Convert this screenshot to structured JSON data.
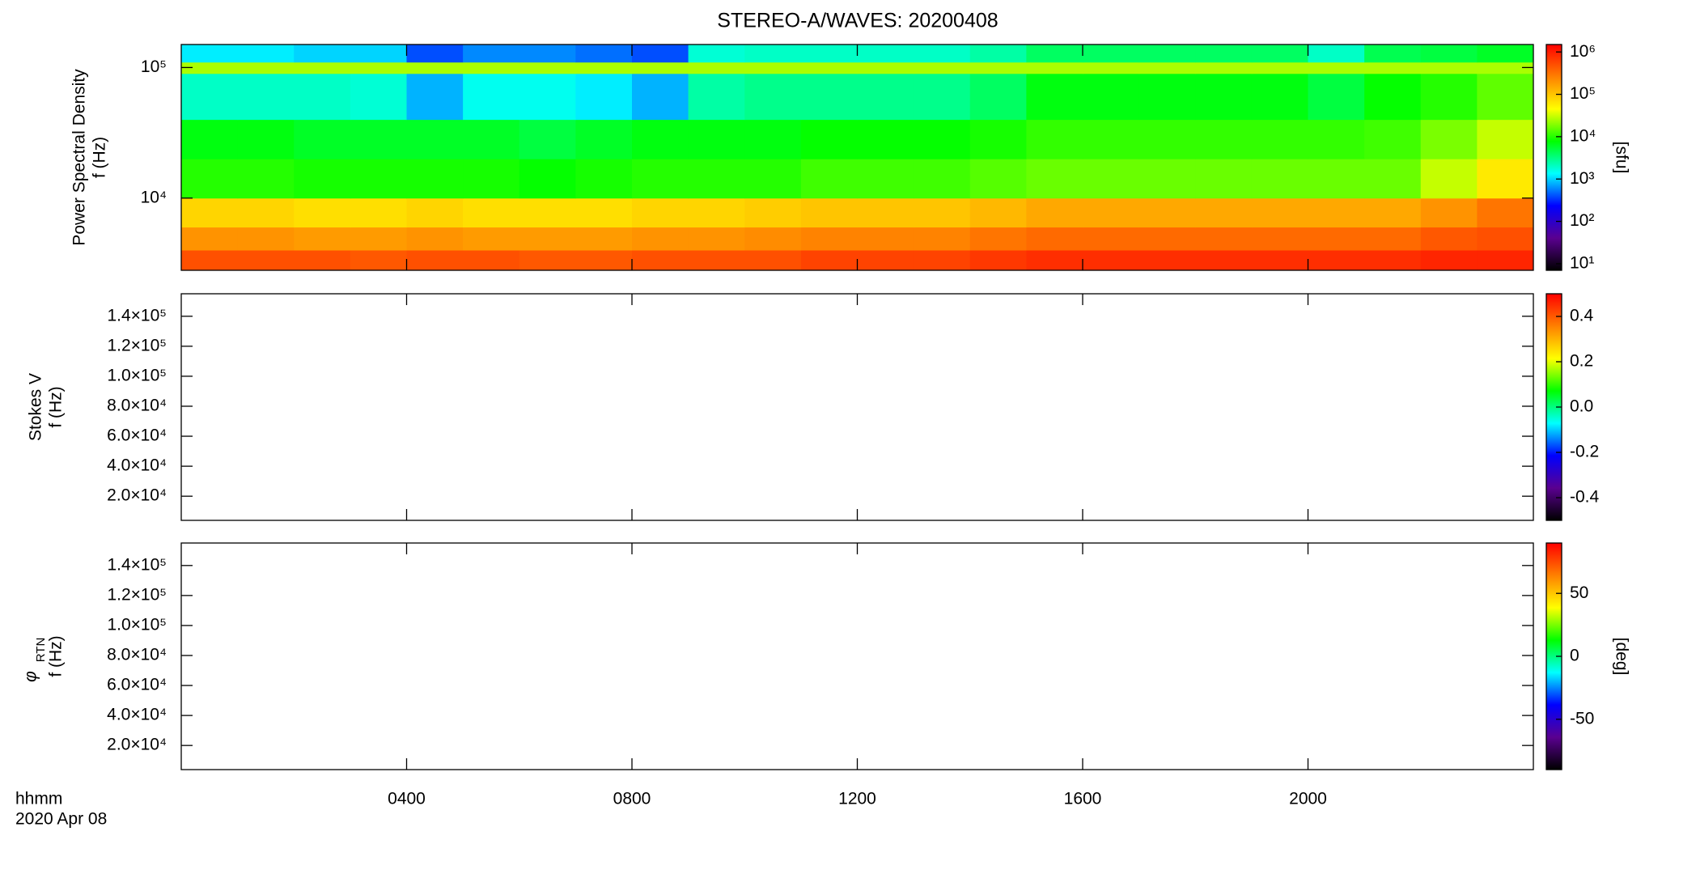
{
  "title": "STEREO-A/WAVES: 20200408",
  "x_axis": {
    "label": "hhmm",
    "date": "2020 Apr 08",
    "xlim": [
      0,
      24
    ],
    "xticks": [
      {
        "value": 4,
        "label": "0400"
      },
      {
        "value": 8,
        "label": "0800"
      },
      {
        "value": 12,
        "label": "1200"
      },
      {
        "value": 16,
        "label": "1600"
      },
      {
        "value": 20,
        "label": "2000"
      }
    ]
  },
  "colormap": [
    "#000000",
    "#5a0090",
    "#0000ff",
    "#00ffff",
    "#00ff00",
    "#ffff00",
    "#ff8000",
    "#ff0000"
  ],
  "chart_data": [
    {
      "type": "heatmap",
      "ylabel": "Power Spectral Density",
      "ylabel2": "f (Hz)",
      "ylog": true,
      "ylim": [
        2800,
        150000
      ],
      "yticks": [
        {
          "value": 10000,
          "label": "10⁴"
        },
        {
          "value": 100000,
          "label": "10⁵"
        }
      ],
      "zlog": true,
      "zlim": [
        7,
        1500000
      ],
      "zlabel": "[sfu]",
      "zticks": [
        {
          "value": 10,
          "label": "10¹"
        },
        {
          "value": 100,
          "label": "10²"
        },
        {
          "value": 1000,
          "label": "10³"
        },
        {
          "value": 10000,
          "label": "10⁴"
        },
        {
          "value": 100000,
          "label": "10⁵"
        },
        {
          "value": 1000000,
          "label": "10⁶"
        }
      ],
      "xbins": [
        0,
        1,
        2,
        3,
        4,
        5,
        6,
        7,
        8,
        9,
        10,
        11,
        12,
        13,
        14,
        15,
        16,
        17,
        18,
        19,
        20,
        21,
        22,
        23,
        24
      ],
      "ybins": [
        2800,
        4000,
        6000,
        10000,
        20000,
        40000,
        90000,
        110000,
        150000
      ],
      "z": [
        [
          500000,
          500000,
          500000,
          450000,
          500000,
          500000,
          450000,
          450000,
          500000,
          500000,
          500000,
          600000,
          600000,
          600000,
          700000,
          800000,
          800000,
          800000,
          800000,
          800000,
          800000,
          800000,
          900000,
          900000
        ],
        [
          200000,
          200000,
          180000,
          180000,
          200000,
          180000,
          180000,
          180000,
          200000,
          200000,
          220000,
          250000,
          250000,
          250000,
          300000,
          350000,
          350000,
          350000,
          350000,
          350000,
          350000,
          350000,
          450000,
          500000
        ],
        [
          80000,
          80000,
          70000,
          70000,
          80000,
          70000,
          70000,
          70000,
          80000,
          80000,
          90000,
          100000,
          100000,
          100000,
          120000,
          150000,
          150000,
          150000,
          150000,
          150000,
          150000,
          150000,
          200000,
          300000
        ],
        [
          10000,
          10000,
          9000,
          9000,
          9000,
          9000,
          8000,
          9000,
          10000,
          10000,
          10000,
          12000,
          12000,
          12000,
          14000,
          16000,
          16000,
          16000,
          16000,
          16000,
          16000,
          16000,
          30000,
          60000
        ],
        [
          7000,
          7000,
          6000,
          6000,
          6000,
          6000,
          5000,
          6000,
          7000,
          7000,
          7000,
          8000,
          8000,
          8000,
          9000,
          11000,
          11000,
          11000,
          11000,
          11000,
          11000,
          12000,
          18000,
          30000
        ],
        [
          2000,
          2000,
          2000,
          1800,
          800,
          1500,
          1500,
          1200,
          800,
          2500,
          3000,
          3000,
          3000,
          3000,
          4000,
          7000,
          7000,
          7000,
          7000,
          7000,
          5000,
          8000,
          10000,
          15000
        ],
        [
          25000,
          25000,
          25000,
          25000,
          25000,
          25000,
          25000,
          25000,
          25000,
          25000,
          25000,
          25000,
          25000,
          25000,
          25000,
          25000,
          25000,
          25000,
          25000,
          25000,
          25000,
          25000,
          25000,
          25000
        ],
        [
          1200,
          1200,
          1000,
          1000,
          400,
          600,
          600,
          500,
          400,
          1800,
          2000,
          2000,
          2000,
          2000,
          2500,
          4000,
          4000,
          4000,
          4000,
          4000,
          2000,
          4500,
          5000,
          6000
        ]
      ]
    },
    {
      "type": "heatmap",
      "ylabel": "Stokes V",
      "ylabel2": "f (Hz)",
      "ylog": false,
      "ylim": [
        3900,
        155000
      ],
      "yticks": [
        {
          "value": 20000,
          "label": "2.0×10⁴"
        },
        {
          "value": 40000,
          "label": "4.0×10⁴"
        },
        {
          "value": 60000,
          "label": "6.0×10⁴"
        },
        {
          "value": 80000,
          "label": "8.0×10⁴"
        },
        {
          "value": 100000,
          "label": "1.0×10⁵"
        },
        {
          "value": 120000,
          "label": "1.2×10⁵"
        },
        {
          "value": 140000,
          "label": "1.4×10⁵"
        }
      ],
      "zlog": false,
      "zlim": [
        -0.5,
        0.5
      ],
      "zticks": [
        -0.4,
        -0.2,
        {
          "value": 0,
          "label": "0.0"
        },
        0.2,
        0.4
      ]
    },
    {
      "type": "heatmap",
      "ylabel_symbol": "φ",
      "ylabel_subscript": "RTN",
      "ylabel2": "f (Hz)",
      "ylog": false,
      "ylim": [
        3900,
        155000
      ],
      "yticks": [
        {
          "value": 20000,
          "label": "2.0×10⁴"
        },
        {
          "value": 40000,
          "label": "4.0×10⁴"
        },
        {
          "value": 60000,
          "label": "6.0×10⁴"
        },
        {
          "value": 80000,
          "label": "8.0×10⁴"
        },
        {
          "value": 100000,
          "label": "1.0×10⁵"
        },
        {
          "value": 120000,
          "label": "1.2×10⁵"
        },
        {
          "value": 140000,
          "label": "1.4×10⁵"
        }
      ],
      "zlog": false,
      "zlim": [
        -90,
        90
      ],
      "zlabel": "[deg]",
      "zticks": [
        -50,
        0,
        50
      ]
    }
  ]
}
